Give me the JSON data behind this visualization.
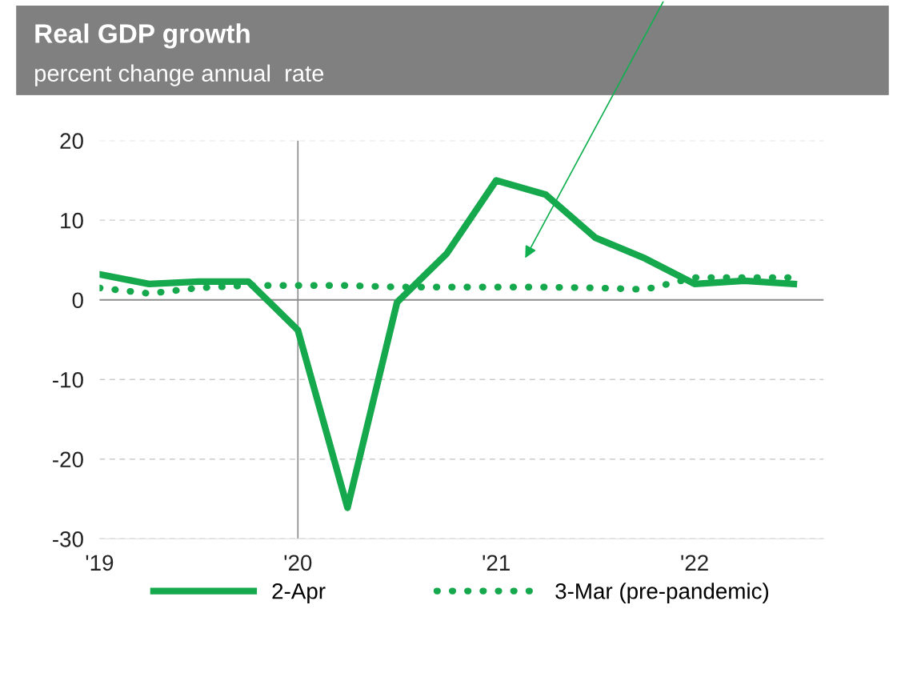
{
  "chart_data": {
    "type": "line",
    "title": "Real GDP growth",
    "subtitle": "percent change annual  rate",
    "x": [
      2019.0,
      2019.25,
      2019.5,
      2019.75,
      2020.0,
      2020.25,
      2020.5,
      2020.75,
      2021.0,
      2021.25,
      2021.5,
      2021.75,
      2022.0,
      2022.25,
      2022.5
    ],
    "series": [
      {
        "name": "2-Apr",
        "color": "#16a84c",
        "line_style": "solid",
        "values": [
          3.2,
          2.0,
          2.3,
          2.3,
          -3.8,
          -26.1,
          -0.3,
          5.8,
          15.0,
          13.2,
          7.8,
          5.2,
          2.0,
          2.4,
          2.0
        ]
      },
      {
        "name": "3-Mar (pre-pandemic)",
        "color": "#16a84c",
        "line_style": "dotted",
        "values": [
          1.5,
          0.8,
          1.5,
          1.8,
          1.8,
          1.8,
          1.6,
          1.6,
          1.6,
          1.6,
          1.5,
          1.3,
          2.8,
          2.8,
          2.8
        ]
      }
    ],
    "xlim": [
      2019.0,
      2022.65
    ],
    "xticks": [
      {
        "value": 2019,
        "label": "'19"
      },
      {
        "value": 2020,
        "label": "'20"
      },
      {
        "value": 2021,
        "label": "'21"
      },
      {
        "value": 2022,
        "label": "'22"
      }
    ],
    "ylim": [
      -30,
      20
    ],
    "yticks": [
      -30,
      -20,
      -10,
      0,
      10,
      20
    ],
    "ref_lines": [
      {
        "axis": "x",
        "value": 2020,
        "color": "#8c8c8c"
      },
      {
        "axis": "y",
        "value": 0,
        "color": "#8c8c8c"
      }
    ],
    "grid": "y",
    "legend": "bottom"
  }
}
